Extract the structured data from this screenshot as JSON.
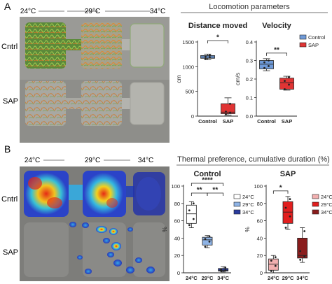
{
  "panel_A": {
    "letter": "A",
    "temps": [
      "24°C",
      "29°C",
      "34°C"
    ],
    "row_labels": [
      "Cntrl",
      "SAP"
    ],
    "section_title": "Locomotion parameters"
  },
  "panel_B": {
    "letter": "B",
    "temps": [
      "24°C",
      "29°C",
      "34°C"
    ],
    "row_labels": [
      "Cntrl",
      "SAP"
    ],
    "section_title": "Thermal preference, cumulative duration (%)"
  },
  "colors": {
    "control": "#6f9ad8",
    "sap": "#e03434",
    "heat_blue": "#2b43c8",
    "heat_red": "#e52a16"
  },
  "chart_data": [
    {
      "type": "box",
      "title": "Distance moved",
      "ylabel": "cm",
      "ylim": [
        0,
        1500
      ],
      "yticks": [
        0,
        500,
        1000,
        1500
      ],
      "categories": [
        "Control",
        "SAP"
      ],
      "boxes": [
        {
          "name": "Control",
          "min": 1140,
          "q1": 1170,
          "median": 1195,
          "q3": 1225,
          "max": 1255,
          "points": [
            1160,
            1190,
            1200,
            1230
          ]
        },
        {
          "name": "SAP",
          "min": 20,
          "q1": 50,
          "median": 80,
          "q3": 250,
          "max": 370,
          "points": [
            40,
            70,
            90,
            250
          ]
        }
      ],
      "significance": [
        {
          "pair": [
            "Control",
            "SAP"
          ],
          "label": "*"
        }
      ]
    },
    {
      "type": "box",
      "title": "Velocity",
      "ylabel": "cm/s",
      "ylim": [
        0,
        0.4
      ],
      "yticks": [
        0,
        0.1,
        0.2,
        0.3,
        0.4
      ],
      "categories": [
        "Control",
        "SAP"
      ],
      "legend": [
        "Control",
        "SAP"
      ],
      "legend_position": "top-right",
      "boxes": [
        {
          "name": "Control",
          "min": 0.245,
          "q1": 0.255,
          "median": 0.28,
          "q3": 0.3,
          "max": 0.31,
          "points": [
            0.26,
            0.27,
            0.29,
            0.3
          ]
        },
        {
          "name": "SAP",
          "min": 0.14,
          "q1": 0.145,
          "median": 0.18,
          "q3": 0.205,
          "max": 0.215,
          "points": [
            0.145,
            0.17,
            0.19,
            0.21
          ]
        }
      ],
      "significance": [
        {
          "pair": [
            "Control",
            "SAP"
          ],
          "label": "**"
        }
      ]
    },
    {
      "type": "box",
      "title": "Control",
      "ylabel": "%",
      "ylim": [
        0,
        100
      ],
      "yticks": [
        0,
        20,
        40,
        60,
        80,
        100
      ],
      "categories": [
        "24°C",
        "29°C",
        "34°C"
      ],
      "legend": [
        "24°C",
        "29°C",
        "34°C"
      ],
      "legend_position": "top-right",
      "box_colors": [
        "#ffffff",
        "#8fb4e6",
        "#2a3c9e"
      ],
      "boxes": [
        {
          "name": "24°C",
          "min": 52,
          "q1": 57,
          "median": 68,
          "q3": 78,
          "max": 82,
          "points": [
            55,
            62,
            72,
            80
          ]
        },
        {
          "name": "29°C",
          "min": 29,
          "q1": 32,
          "median": 38,
          "q3": 41,
          "max": 43,
          "points": [
            30,
            36,
            39,
            42
          ]
        },
        {
          "name": "34°C",
          "min": 1,
          "q1": 2,
          "median": 3,
          "q3": 5,
          "max": 7,
          "points": [
            2,
            3,
            4,
            6
          ]
        }
      ],
      "significance": [
        {
          "pair": [
            "24°C",
            "34°C"
          ],
          "label": "****"
        },
        {
          "pair": [
            "24°C",
            "29°C"
          ],
          "label": "**"
        },
        {
          "pair": [
            "29°C",
            "34°C"
          ],
          "label": "**"
        }
      ]
    },
    {
      "type": "box",
      "title": "SAP",
      "ylabel": "%",
      "ylim": [
        0,
        100
      ],
      "yticks": [
        0,
        20,
        40,
        60,
        80,
        100
      ],
      "categories": [
        "24°C",
        "29°C",
        "34°C"
      ],
      "legend": [
        "24°C",
        "29°C",
        "34°C"
      ],
      "legend_position": "top-right",
      "box_colors": [
        "#f2b0b0",
        "#e21f1f",
        "#8a1c1c"
      ],
      "boxes": [
        {
          "name": "24°C",
          "min": 0,
          "q1": 3,
          "median": 10,
          "q3": 16,
          "max": 20,
          "points": [
            2,
            8,
            14,
            18
          ]
        },
        {
          "name": "29°C",
          "min": 50,
          "q1": 57,
          "median": 70,
          "q3": 82,
          "max": 88,
          "points": [
            52,
            65,
            75,
            85
          ]
        },
        {
          "name": "34°C",
          "min": 12,
          "q1": 17,
          "median": 20,
          "q3": 40,
          "max": 52,
          "points": [
            15,
            19,
            25,
            48
          ]
        }
      ],
      "significance": [
        {
          "pair": [
            "24°C",
            "29°C"
          ],
          "label": "*"
        }
      ]
    }
  ]
}
